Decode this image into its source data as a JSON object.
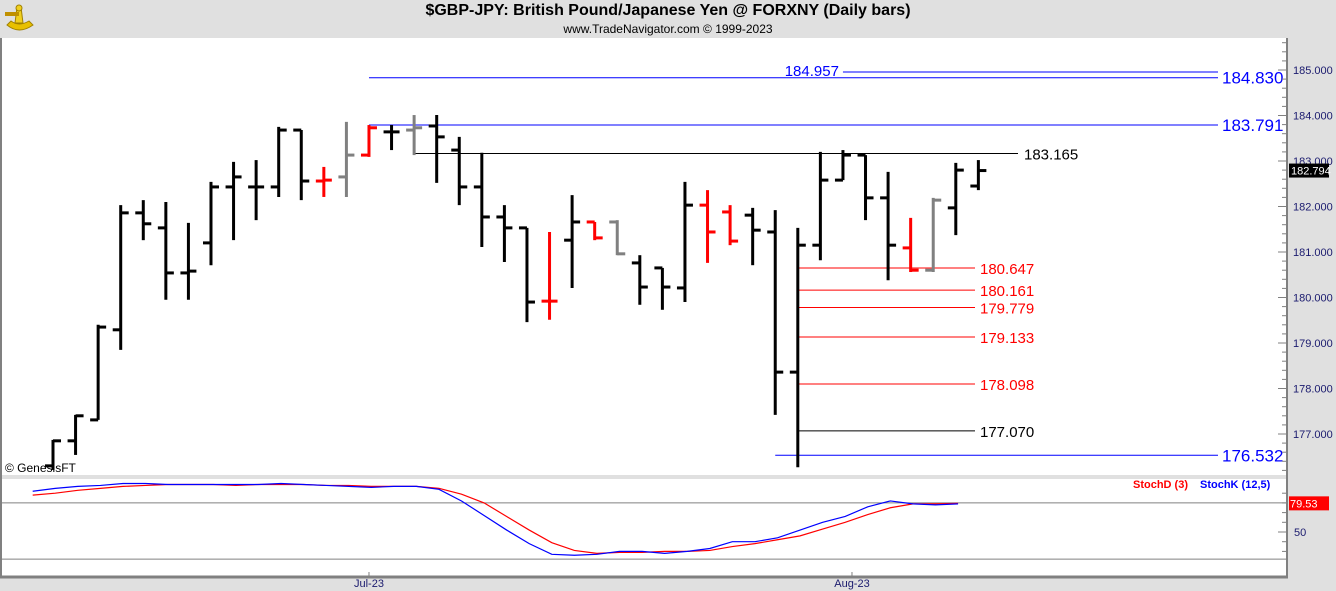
{
  "header": {
    "title": "$GBP-JPY:  British Pound/Japanese Yen @ FORXNY  (Daily bars)",
    "subtitle": "www.TradeNavigator.com © 1999-2023",
    "logo": "sextant-logo"
  },
  "watermark": "© GenesisFT",
  "chart_data": [
    {
      "type": "ohlc",
      "yaxis": {
        "range": [
          176.0,
          185.6
        ],
        "ticks": [
          "185.000",
          "184.000",
          "183.000",
          "182.000",
          "181.000",
          "180.000",
          "179.000",
          "178.000",
          "177.000"
        ],
        "tick_values": [
          185,
          184,
          183,
          182,
          181,
          180,
          179,
          178,
          177
        ]
      },
      "xaxis": {
        "labels": [
          {
            "text": "Jul-23",
            "bar": 14
          },
          {
            "text": "Aug-23",
            "bar": 35.4
          }
        ]
      },
      "last_price": "182.794",
      "colors": {
        "up": "#000000",
        "red": "#ff0000",
        "gray": "#808080",
        "label_bg": "#000000"
      },
      "bars": [
        {
          "o": 176.3,
          "h": 176.87,
          "l": 176.21,
          "c": 176.85,
          "color": "black"
        },
        {
          "o": 176.85,
          "h": 177.42,
          "l": 176.54,
          "c": 177.4,
          "color": "black"
        },
        {
          "o": 177.31,
          "h": 179.4,
          "l": 177.31,
          "c": 179.35,
          "color": "black"
        },
        {
          "o": 179.29,
          "h": 182.03,
          "l": 178.85,
          "c": 181.86,
          "color": "black"
        },
        {
          "o": 181.86,
          "h": 182.14,
          "l": 181.26,
          "c": 181.62,
          "color": "black"
        },
        {
          "o": 181.53,
          "h": 182.1,
          "l": 179.95,
          "c": 180.54,
          "color": "black"
        },
        {
          "o": 180.54,
          "h": 181.64,
          "l": 179.95,
          "c": 180.58,
          "color": "black"
        },
        {
          "o": 181.2,
          "h": 182.54,
          "l": 180.71,
          "c": 182.43,
          "color": "black"
        },
        {
          "o": 182.43,
          "h": 182.98,
          "l": 181.26,
          "c": 182.65,
          "color": "black"
        },
        {
          "o": 182.43,
          "h": 183.02,
          "l": 181.7,
          "c": 182.43,
          "color": "black"
        },
        {
          "o": 182.43,
          "h": 183.75,
          "l": 182.21,
          "c": 183.68,
          "color": "black"
        },
        {
          "o": 183.68,
          "h": 183.68,
          "l": 182.14,
          "c": 182.56,
          "color": "black"
        },
        {
          "o": 182.56,
          "h": 182.87,
          "l": 182.21,
          "c": 182.58,
          "color": "red"
        },
        {
          "o": 182.65,
          "h": 183.86,
          "l": 182.21,
          "c": 183.13,
          "color": "gray"
        },
        {
          "o": 183.13,
          "h": 183.79,
          "l": 183.09,
          "c": 183.73,
          "color": "red"
        },
        {
          "o": 183.64,
          "h": 183.79,
          "l": 183.24,
          "c": 183.64,
          "color": "black"
        },
        {
          "o": 183.68,
          "h": 184.01,
          "l": 183.13,
          "c": 183.73,
          "color": "gray"
        },
        {
          "o": 183.77,
          "h": 184.01,
          "l": 182.52,
          "c": 183.53,
          "color": "black"
        },
        {
          "o": 183.24,
          "h": 183.53,
          "l": 182.03,
          "c": 182.43,
          "color": "black"
        },
        {
          "o": 182.43,
          "h": 183.18,
          "l": 181.11,
          "c": 181.77,
          "color": "black"
        },
        {
          "o": 181.77,
          "h": 182.03,
          "l": 180.78,
          "c": 181.53,
          "color": "black"
        },
        {
          "o": 181.53,
          "h": 181.53,
          "l": 179.46,
          "c": 179.9,
          "color": "black"
        },
        {
          "o": 179.92,
          "h": 181.44,
          "l": 179.51,
          "c": 179.92,
          "color": "red"
        },
        {
          "o": 181.26,
          "h": 182.25,
          "l": 180.21,
          "c": 181.66,
          "color": "black"
        },
        {
          "o": 181.66,
          "h": 181.66,
          "l": 181.26,
          "c": 181.31,
          "color": "red"
        },
        {
          "o": 181.66,
          "h": 181.7,
          "l": 180.93,
          "c": 180.96,
          "color": "gray"
        },
        {
          "o": 180.76,
          "h": 180.93,
          "l": 179.84,
          "c": 180.23,
          "color": "black"
        },
        {
          "o": 180.65,
          "h": 180.65,
          "l": 179.73,
          "c": 180.23,
          "color": "black"
        },
        {
          "o": 180.21,
          "h": 182.54,
          "l": 179.9,
          "c": 182.03,
          "color": "black"
        },
        {
          "o": 182.03,
          "h": 182.36,
          "l": 180.76,
          "c": 181.44,
          "color": "red"
        },
        {
          "o": 181.88,
          "h": 182.03,
          "l": 181.15,
          "c": 181.24,
          "color": "red"
        },
        {
          "o": 181.81,
          "h": 181.97,
          "l": 180.71,
          "c": 181.48,
          "color": "black"
        },
        {
          "o": 181.44,
          "h": 181.92,
          "l": 177.42,
          "c": 178.36,
          "color": "black"
        },
        {
          "o": 178.36,
          "h": 181.53,
          "l": 176.27,
          "c": 181.15,
          "color": "black"
        },
        {
          "o": 181.15,
          "h": 183.2,
          "l": 180.82,
          "c": 182.58,
          "color": "black"
        },
        {
          "o": 182.58,
          "h": 183.24,
          "l": 182.58,
          "c": 183.13,
          "color": "black"
        },
        {
          "o": 183.13,
          "h": 183.13,
          "l": 181.7,
          "c": 182.19,
          "color": "black"
        },
        {
          "o": 182.19,
          "h": 182.76,
          "l": 180.38,
          "c": 181.15,
          "color": "black"
        },
        {
          "o": 181.09,
          "h": 181.75,
          "l": 180.56,
          "c": 180.6,
          "color": "red"
        },
        {
          "o": 180.6,
          "h": 182.19,
          "l": 180.56,
          "c": 182.14,
          "color": "gray"
        },
        {
          "o": 181.97,
          "h": 182.96,
          "l": 181.37,
          "c": 182.8,
          "color": "black"
        },
        {
          "o": 182.45,
          "h": 183.02,
          "l": 182.36,
          "c": 182.79,
          "color": "black"
        }
      ],
      "levels": [
        {
          "value": 184.957,
          "label": "184.957",
          "color": "#0000ff",
          "from_bar": 35,
          "label_pos": "left"
        },
        {
          "value": 184.83,
          "label": "184.830",
          "color": "#0000ff",
          "from_bar": 14,
          "label_pos": "axis"
        },
        {
          "value": 183.791,
          "label": "183.791",
          "color": "#0000ff",
          "from_bar": 14,
          "label_pos": "axis"
        },
        {
          "value": 183.165,
          "label": "183.165",
          "color": "#000000",
          "from_bar": 16,
          "label_pos": "mid"
        },
        {
          "value": 180.647,
          "label": "180.647",
          "color": "#ff0000",
          "from_bar": 33,
          "label_pos": "end"
        },
        {
          "value": 180.161,
          "label": "180.161",
          "color": "#ff0000",
          "from_bar": 33,
          "label_pos": "end"
        },
        {
          "value": 179.779,
          "label": "179.779",
          "color": "#ff0000",
          "from_bar": 33,
          "label_pos": "end"
        },
        {
          "value": 179.133,
          "label": "179.133",
          "color": "#ff0000",
          "from_bar": 33,
          "label_pos": "end"
        },
        {
          "value": 178.098,
          "label": "178.098",
          "color": "#ff0000",
          "from_bar": 33,
          "label_pos": "end"
        },
        {
          "value": 177.07,
          "label": "177.070",
          "color": "#000000",
          "from_bar": 33,
          "label_pos": "end"
        },
        {
          "value": 176.532,
          "label": "176.532",
          "color": "#0000ff",
          "from_bar": 32,
          "label_pos": "axis"
        }
      ]
    },
    {
      "type": "line",
      "yaxis": {
        "ticks": [
          "50"
        ],
        "tick_values": [
          50
        ],
        "gridlines": [
          80,
          20
        ]
      },
      "last_value": "79.53",
      "series": [
        {
          "name": "StochD (3)",
          "color": "#ff0000",
          "values": [
            88,
            90,
            93,
            95,
            97,
            98,
            99,
            99,
            99,
            98,
            99,
            99,
            99,
            98,
            98,
            97,
            97,
            97,
            95,
            89,
            80,
            66,
            52,
            39,
            31,
            28,
            29,
            29,
            30,
            30,
            31,
            35,
            38,
            42,
            46,
            53,
            60,
            68,
            75,
            79,
            79,
            79.53
          ]
        },
        {
          "name": "StochK (12,5)",
          "color": "#0000ff",
          "values": [
            92,
            95,
            97,
            98,
            100,
            100,
            99,
            99,
            99,
            99,
            99,
            100,
            99,
            98,
            97,
            96,
            97,
            97,
            94,
            82,
            67,
            52,
            38,
            27,
            26,
            27,
            30,
            30,
            28,
            30,
            33,
            40,
            40,
            44,
            52,
            60,
            66,
            76,
            82,
            79,
            78,
            79
          ]
        }
      ]
    }
  ]
}
